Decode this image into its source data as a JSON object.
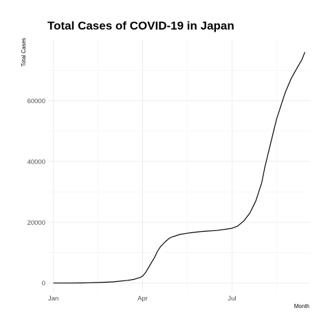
{
  "chart_data": {
    "type": "line",
    "title": "Total Cases of COVID-19 in Japan",
    "xlabel": "Month",
    "ylabel": "Total Cases",
    "x_ticks": [
      {
        "label": "Jan",
        "month": 1
      },
      {
        "label": "Apr",
        "month": 4
      },
      {
        "label": "Jul",
        "month": 7
      }
    ],
    "y_ticks": [
      {
        "label": "0",
        "value": 0
      },
      {
        "label": "20000",
        "value": 20000
      },
      {
        "label": "40000",
        "value": 40000
      },
      {
        "label": "60000",
        "value": 60000
      }
    ],
    "xlim": [
      0.8,
      9.6
    ],
    "ylim": [
      -3000,
      80000
    ],
    "grid": true,
    "legend": "none",
    "line_color": "#000000",
    "series": [
      {
        "x": [
          1.0,
          1.5,
          2.0,
          2.5,
          2.8,
          3.0,
          3.2,
          3.5,
          3.7,
          3.9,
          4.0,
          4.1,
          4.25,
          4.4,
          4.5,
          4.6,
          4.75,
          4.9,
          5.0,
          5.25,
          5.5,
          5.75,
          6.0,
          6.5,
          7.0,
          7.2,
          7.4,
          7.6,
          7.8,
          7.9,
          8.0,
          8.1,
          8.2,
          8.3,
          8.4,
          8.5,
          8.6,
          8.7,
          8.8,
          9.0,
          9.2,
          9.35,
          9.45
        ],
        "y": [
          0,
          10,
          50,
          200,
          300,
          400,
          600,
          900,
          1200,
          1800,
          2300,
          3500,
          6000,
          8500,
          10500,
          12000,
          13500,
          14800,
          15200,
          16000,
          16400,
          16700,
          17000,
          17300,
          18000,
          18800,
          20500,
          23000,
          27000,
          30000,
          33000,
          38000,
          42000,
          46000,
          50000,
          54000,
          57000,
          60000,
          63000,
          67500,
          71000,
          73500,
          76000
        ]
      }
    ]
  }
}
